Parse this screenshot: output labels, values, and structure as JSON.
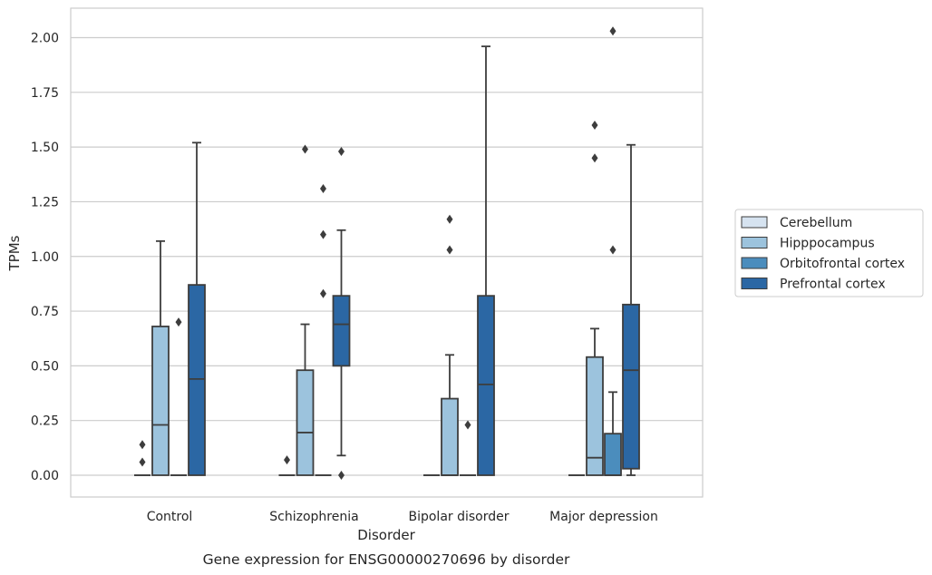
{
  "chart_data": {
    "type": "box",
    "title": "",
    "caption": "Gene expression for ENSG00000270696 by disorder",
    "xlabel": "Disorder",
    "ylabel": "TPMs",
    "ylim": [
      -0.1,
      2.13
    ],
    "yticks": [
      0,
      0.25,
      0.5,
      0.75,
      1.0,
      1.25,
      1.5,
      1.75,
      2.0
    ],
    "ytick_labels": [
      "0.00",
      "0.25",
      "0.50",
      "0.75",
      "1.00",
      "1.25",
      "1.50",
      "1.75",
      "2.00"
    ],
    "grid": "horizontal",
    "legend_position": "right",
    "categories": [
      "Control",
      "Schizophrenia",
      "Bipolar disorder",
      "Major depression"
    ],
    "series": [
      {
        "name": "Cerebellum",
        "color": "#d6e3f0",
        "boxes": [
          {
            "q1": 0,
            "median": 0,
            "q3": 0,
            "whisker_low": 0,
            "whisker_high": 0,
            "outliers": [
              0.06,
              0.14
            ]
          },
          {
            "q1": 0,
            "median": 0,
            "q3": 0,
            "whisker_low": 0,
            "whisker_high": 0,
            "outliers": [
              0.07
            ]
          },
          {
            "q1": 0,
            "median": 0,
            "q3": 0,
            "whisker_low": 0,
            "whisker_high": 0,
            "outliers": []
          },
          {
            "q1": 0,
            "median": 0,
            "q3": 0,
            "whisker_low": 0,
            "whisker_high": 0,
            "outliers": []
          }
        ]
      },
      {
        "name": "Hipppocampus",
        "color": "#9cc3dd",
        "boxes": [
          {
            "q1": 0,
            "median": 0.23,
            "q3": 0.68,
            "whisker_low": 0,
            "whisker_high": 1.07,
            "outliers": []
          },
          {
            "q1": 0,
            "median": 0.195,
            "q3": 0.48,
            "whisker_low": 0,
            "whisker_high": 0.69,
            "outliers": [
              1.49
            ]
          },
          {
            "q1": 0,
            "median": 0,
            "q3": 0.35,
            "whisker_low": 0,
            "whisker_high": 0.55,
            "outliers": [
              1.03,
              1.17
            ]
          },
          {
            "q1": 0,
            "median": 0.08,
            "q3": 0.54,
            "whisker_low": 0,
            "whisker_high": 0.67,
            "outliers": [
              1.45,
              1.6
            ]
          }
        ]
      },
      {
        "name": "Orbitofrontal cortex",
        "color": "#4b8dbd",
        "boxes": [
          {
            "q1": 0,
            "median": 0,
            "q3": 0,
            "whisker_low": 0,
            "whisker_high": 0,
            "outliers": [
              0.7
            ]
          },
          {
            "q1": 0,
            "median": 0,
            "q3": 0,
            "whisker_low": 0,
            "whisker_high": 0,
            "outliers": [
              0.83,
              1.1,
              1.31
            ]
          },
          {
            "q1": 0,
            "median": 0,
            "q3": 0,
            "whisker_low": 0,
            "whisker_high": 0,
            "outliers": [
              0.23
            ]
          },
          {
            "q1": 0,
            "median": 0,
            "q3": 0.19,
            "whisker_low": 0,
            "whisker_high": 0.38,
            "outliers": [
              1.03,
              2.03
            ]
          }
        ]
      },
      {
        "name": "Prefrontal cortex",
        "color": "#2b67a4",
        "boxes": [
          {
            "q1": 0,
            "median": 0.44,
            "q3": 0.87,
            "whisker_low": 0,
            "whisker_high": 1.52,
            "outliers": []
          },
          {
            "q1": 0.5,
            "median": 0.69,
            "q3": 0.82,
            "whisker_low": 0.09,
            "whisker_high": 1.12,
            "outliers": [
              0,
              1.48
            ]
          },
          {
            "q1": 0,
            "median": 0.415,
            "q3": 0.82,
            "whisker_low": 0,
            "whisker_high": 1.96,
            "outliers": []
          },
          {
            "q1": 0.03,
            "median": 0.48,
            "q3": 0.78,
            "whisker_low": 0,
            "whisker_high": 1.51,
            "outliers": []
          }
        ]
      }
    ]
  }
}
